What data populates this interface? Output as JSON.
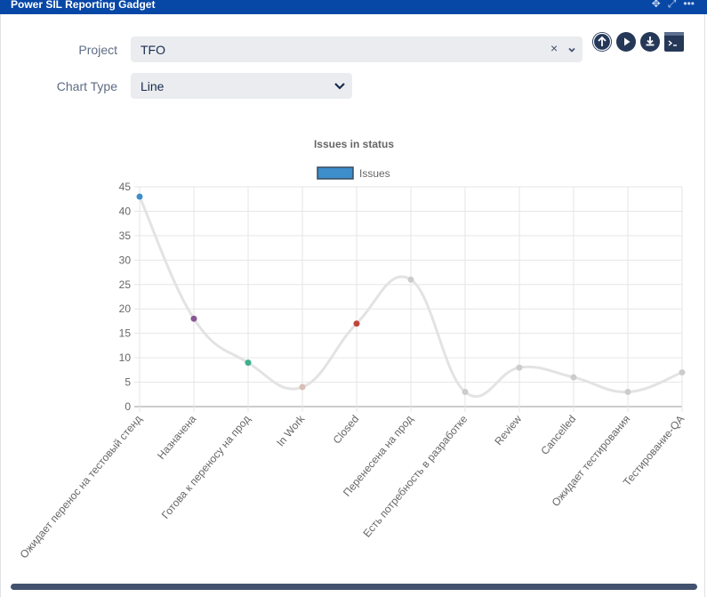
{
  "window": {
    "title": "Power SIL Reporting Gadget"
  },
  "form": {
    "project_label": "Project",
    "project_value": "TFO",
    "chart_type_label": "Chart Type",
    "chart_type_value": "Line"
  },
  "chart_data": {
    "type": "line",
    "title": "Issues in status",
    "legend": "top-center",
    "grid": true,
    "ylim": [
      0,
      45
    ],
    "yticks": [
      0,
      5,
      10,
      15,
      20,
      25,
      30,
      35,
      40,
      45
    ],
    "categories": [
      "Ожидает перенос на тестовый стенд",
      "Назначена",
      "Готова к переносу на прод",
      "In Work",
      "Closed",
      "Перенесена на прод",
      "Есть потребность в разработке",
      "Review",
      "Cancelled",
      "Ожидает тестирования",
      "Тестирование-QA"
    ],
    "series": [
      {
        "name": "Issues",
        "values": [
          43,
          18,
          9,
          4,
          17,
          26,
          3,
          8,
          6,
          3,
          7
        ],
        "color": "#3d8ecb"
      }
    ],
    "point_colors": [
      "#3d8ecb",
      "#8a5796",
      "#3cb08c",
      "#d6bfb5",
      "#c0453b",
      "#cccccc",
      "#cccccc",
      "#cccccc",
      "#cccccc",
      "#cccccc",
      "#cccccc"
    ],
    "line_color": "#e3e3e3"
  }
}
